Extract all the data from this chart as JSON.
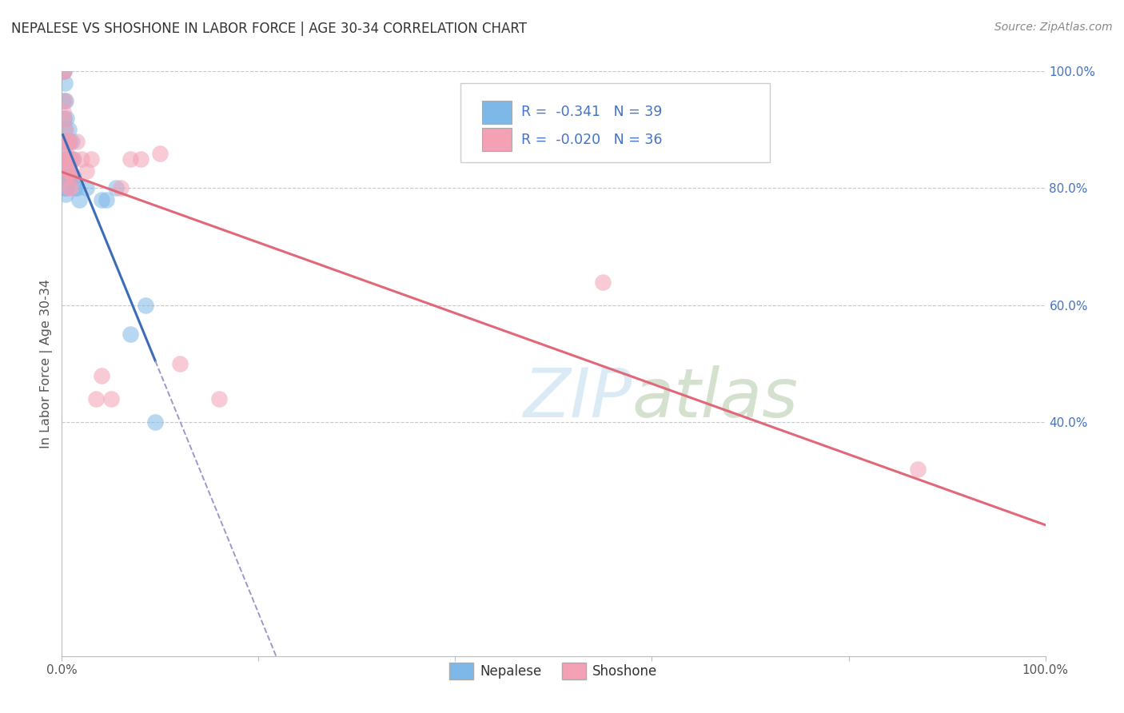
{
  "title": "NEPALESE VS SHOSHONE IN LABOR FORCE | AGE 30-34 CORRELATION CHART",
  "source": "Source: ZipAtlas.com",
  "ylabel": "In Labor Force | Age 30-34",
  "nepalese_color": "#7EB8E8",
  "shoshone_color": "#F4A0B5",
  "nepalese_trend_color": "#3B6CB8",
  "shoshone_trend_color": "#E06878",
  "watermark": "ZIPatlas",
  "legend_r1_text": "R =  -0.341   N = 39",
  "legend_r2_text": "R =  -0.020   N = 36",
  "nepalese_x": [
    0.001,
    0.001,
    0.001,
    0.002,
    0.002,
    0.002,
    0.002,
    0.003,
    0.003,
    0.003,
    0.003,
    0.004,
    0.004,
    0.004,
    0.004,
    0.005,
    0.005,
    0.005,
    0.006,
    0.006,
    0.007,
    0.007,
    0.008,
    0.008,
    0.009,
    0.01,
    0.01,
    0.011,
    0.012,
    0.013,
    0.015,
    0.018,
    0.025,
    0.04,
    0.045,
    0.055,
    0.07,
    0.085,
    0.095
  ],
  "nepalese_y": [
    1.0,
    0.95,
    0.88,
    1.0,
    0.92,
    0.86,
    0.82,
    0.98,
    0.9,
    0.85,
    0.8,
    0.95,
    0.88,
    0.83,
    0.79,
    0.92,
    0.85,
    0.8,
    0.88,
    0.82,
    0.9,
    0.83,
    0.88,
    0.82,
    0.85,
    0.88,
    0.82,
    0.85,
    0.82,
    0.8,
    0.8,
    0.78,
    0.8,
    0.78,
    0.78,
    0.8,
    0.55,
    0.6,
    0.4
  ],
  "shoshone_x": [
    0.001,
    0.001,
    0.002,
    0.002,
    0.002,
    0.003,
    0.003,
    0.004,
    0.004,
    0.005,
    0.005,
    0.006,
    0.006,
    0.007,
    0.007,
    0.008,
    0.008,
    0.009,
    0.009,
    0.01,
    0.012,
    0.015,
    0.02,
    0.025,
    0.03,
    0.035,
    0.04,
    0.05,
    0.06,
    0.07,
    0.08,
    0.1,
    0.12,
    0.16,
    0.55,
    0.87
  ],
  "shoshone_y": [
    1.0,
    0.93,
    1.0,
    0.92,
    0.85,
    0.95,
    0.88,
    0.9,
    0.85,
    0.87,
    0.82,
    0.88,
    0.83,
    0.85,
    0.8,
    0.88,
    0.83,
    0.85,
    0.8,
    0.82,
    0.85,
    0.88,
    0.85,
    0.83,
    0.85,
    0.44,
    0.48,
    0.44,
    0.8,
    0.85,
    0.85,
    0.86,
    0.5,
    0.44,
    0.64,
    0.32
  ],
  "xmin": 0.0,
  "xmax": 1.0,
  "ymin": 0.0,
  "ymax": 1.0,
  "gridline_y": [
    0.4,
    0.6,
    0.8,
    1.0
  ],
  "right_ytick_labels": [
    "40.0%",
    "60.0%",
    "80.0%",
    "100.0%"
  ],
  "right_ytick_vals": [
    0.4,
    0.6,
    0.8,
    1.0
  ]
}
